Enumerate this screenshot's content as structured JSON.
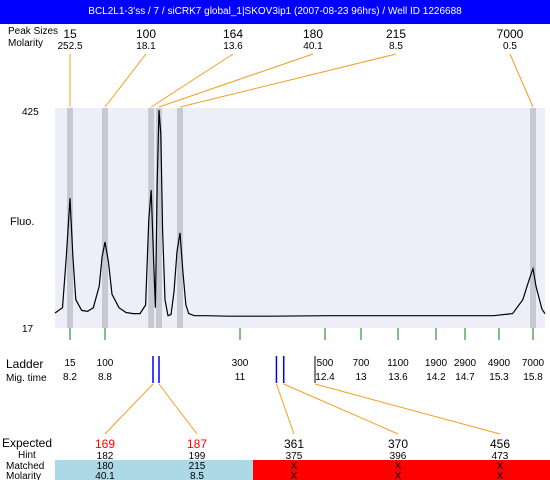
{
  "window": {
    "title": "BCL2L1-3'ss / 7 / siCRK7 global_1|SKOV3ip1 (2007-08-23 96hrs) / Well ID 1226688"
  },
  "labels": {
    "peak_sizes": "Peak Sizes",
    "molarity": "Molarity",
    "fluo": "Fluo.",
    "ladder": "Ladder",
    "mig_time": "Mig. time",
    "expected": "Expected",
    "hint": "Hint",
    "matched": "Matched",
    "molarity_bottom": "Molarity"
  },
  "colors": {
    "titlebar": "#0000ff",
    "plot_background": "#eeeef8",
    "peak_band": "#c8c8d4",
    "leader_orange": "#f0a020",
    "ladder_green": "#008000",
    "marker_blue": "#0000ff",
    "expected_red": "#ff0000",
    "matched_ok": "#add8e6",
    "matched_missing": "#ff0000"
  },
  "chart_data": {
    "type": "line",
    "ylabel": "Fluo.",
    "ylim": [
      17,
      425
    ],
    "y_ticks": [
      "425",
      "17"
    ],
    "x_axis": "migration time",
    "top_peaks": [
      {
        "size": "15",
        "molarity": "252.5",
        "time": 8.2
      },
      {
        "size": "100",
        "molarity": "18.1",
        "time": 8.8
      },
      {
        "size": "164",
        "molarity": "13.6",
        "time": 9.47
      },
      {
        "size": "180",
        "molarity": "40.1",
        "time": 9.6
      },
      {
        "size": "215",
        "molarity": "8.5",
        "time": 9.95
      },
      {
        "size": "7000",
        "molarity": "0.5",
        "time": 15.8
      }
    ],
    "ladder": [
      {
        "size": "15",
        "time": "8.2"
      },
      {
        "size": "100",
        "time": "8.8"
      },
      {
        "size": "300",
        "time": "11"
      },
      {
        "size": "500",
        "time": "12.4"
      },
      {
        "size": "700",
        "time": "13"
      },
      {
        "size": "1100",
        "time": "13.6"
      },
      {
        "size": "1900",
        "time": "14.2"
      },
      {
        "size": "2900",
        "time": "14.7"
      },
      {
        "size": "4900",
        "time": "15.3"
      },
      {
        "size": "7000",
        "time": "15.8"
      }
    ],
    "trace": {
      "x": [
        8.0,
        8.1,
        8.15,
        8.2,
        8.25,
        8.3,
        8.4,
        8.5,
        8.6,
        8.7,
        8.75,
        8.8,
        8.85,
        8.9,
        9.0,
        9.1,
        9.2,
        9.3,
        9.38,
        9.43,
        9.47,
        9.51,
        9.54,
        9.57,
        9.6,
        9.63,
        9.66,
        9.7,
        9.75,
        9.8,
        9.85,
        9.9,
        9.95,
        10.0,
        10.05,
        10.1,
        10.2,
        10.4,
        10.8,
        11.5,
        12.5,
        13.5,
        14.5,
        15.2,
        15.5,
        15.65,
        15.75,
        15.8,
        15.85,
        15.95,
        16.0
      ],
      "y": [
        45,
        55,
        150,
        260,
        150,
        70,
        50,
        48,
        55,
        95,
        150,
        178,
        140,
        80,
        55,
        46,
        44,
        44,
        60,
        220,
        275,
        145,
        55,
        290,
        425,
        380,
        200,
        70,
        40,
        42,
        85,
        160,
        195,
        120,
        60,
        44,
        40,
        40,
        39,
        39,
        40,
        40,
        40,
        40,
        44,
        70,
        110,
        128,
        95,
        52,
        44
      ]
    },
    "blue_markers": [
      9.5,
      9.6,
      11.6,
      11.72
    ],
    "bottom": [
      {
        "expected": "169",
        "hint": "182",
        "matched": "180",
        "molarity": "40.1",
        "status": "matched"
      },
      {
        "expected": "187",
        "hint": "199",
        "matched": "215",
        "molarity": "8.5",
        "status": "matched"
      },
      {
        "expected": "361",
        "hint": "375",
        "matched": "X",
        "molarity": "X",
        "status": "missing"
      },
      {
        "expected": "370",
        "hint": "396",
        "matched": "X",
        "molarity": "X",
        "status": "missing"
      },
      {
        "expected": "456",
        "hint": "473",
        "matched": "X",
        "molarity": "X",
        "status": "missing"
      }
    ]
  }
}
